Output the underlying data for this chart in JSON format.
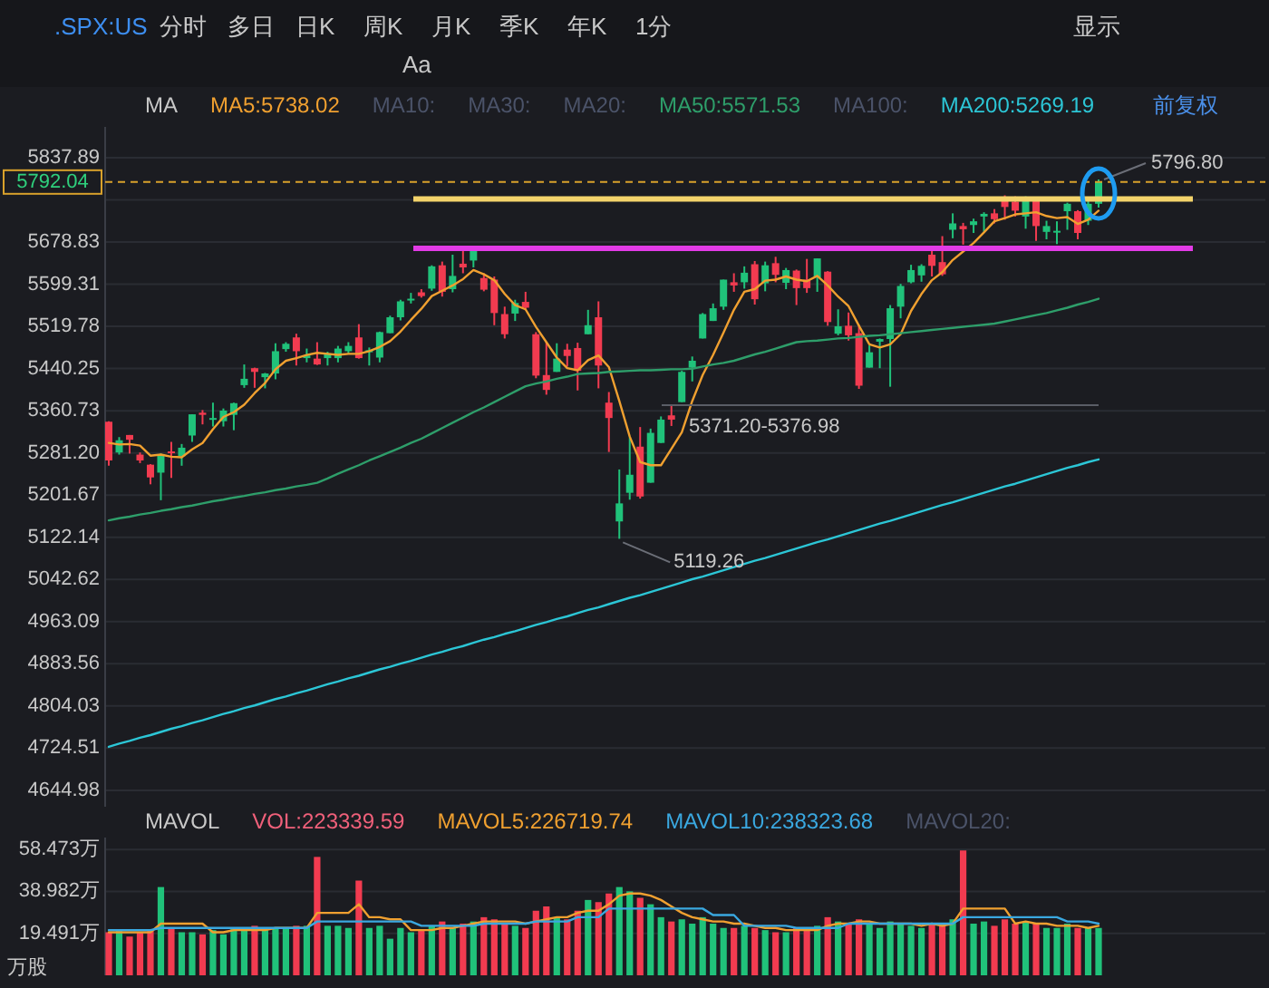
{
  "chart_data": [
    {
      "type": "other",
      "title": ".SPX:US",
      "annotations": [
        "分时",
        "多日",
        "日K",
        "周K",
        "月K",
        "季K",
        "年K",
        "1分",
        "显示",
        "Aa"
      ]
    },
    {
      "type": "candlestick",
      "categories": [
        null,
        null,
        null,
        null,
        null,
        null,
        null,
        null,
        null,
        null,
        null,
        null,
        null,
        null,
        null,
        null,
        null,
        null,
        null,
        null,
        null,
        null,
        null,
        null,
        null,
        null,
        null,
        null,
        null,
        null,
        null,
        null,
        null,
        null,
        null,
        null,
        null,
        null,
        null,
        null,
        null,
        null,
        null,
        null,
        null,
        null,
        null,
        null,
        null,
        null,
        null,
        null,
        null,
        null,
        null,
        null,
        null,
        null,
        null,
        null,
        null,
        null,
        null,
        null,
        null,
        null,
        null,
        null,
        null,
        null,
        null,
        null,
        null,
        null,
        null,
        null,
        null,
        null,
        null,
        null,
        null,
        null,
        null,
        null,
        null,
        null,
        null,
        null,
        null,
        null,
        null,
        null,
        null,
        null,
        null,
        null
      ],
      "ohlc": [
        [
          5340,
          5341,
          5257,
          5267
        ],
        [
          5282,
          5311,
          5278,
          5305
        ],
        [
          5315,
          5315,
          5280,
          5306
        ],
        [
          5278,
          5282,
          5262,
          5267
        ],
        [
          5259,
          5260,
          5222,
          5235
        ],
        [
          5244,
          5280,
          5192,
          5278
        ],
        [
          5284,
          5302,
          5234,
          5283
        ],
        [
          5275,
          5298,
          5257,
          5291
        ],
        [
          5314,
          5354,
          5302,
          5354
        ],
        [
          5357,
          5362,
          5335,
          5353
        ],
        [
          5344,
          5376,
          5331,
          5347
        ],
        [
          5341,
          5365,
          5331,
          5361
        ],
        [
          5353,
          5376,
          5324,
          5375
        ],
        [
          5409,
          5448,
          5404,
          5421
        ],
        [
          5441,
          5442,
          5404,
          5434
        ],
        [
          5424,
          5432,
          5403,
          5431
        ],
        [
          5431,
          5488,
          5420,
          5473
        ],
        [
          5477,
          5490,
          5472,
          5487
        ],
        [
          5499,
          5506,
          5446,
          5473
        ],
        [
          5460,
          5478,
          5452,
          5465
        ],
        [
          5459,
          5490,
          5447,
          5448
        ],
        [
          5460,
          5472,
          5446,
          5469
        ],
        [
          5460,
          5483,
          5452,
          5478
        ],
        [
          5473,
          5490,
          5469,
          5483
        ],
        [
          5499,
          5524,
          5459,
          5460
        ],
        [
          5471,
          5480,
          5446,
          5475
        ],
        [
          5461,
          5510,
          5452,
          5509
        ],
        [
          5507,
          5540,
          5507,
          5537
        ],
        [
          5537,
          5570,
          5531,
          5567
        ],
        [
          5570,
          5583,
          5563,
          5572
        ],
        [
          5584,
          5590,
          5574,
          5577
        ],
        [
          5591,
          5635,
          5587,
          5633
        ],
        [
          5635,
          5642,
          5576,
          5585
        ],
        [
          5590,
          5655,
          5584,
          5615
        ],
        [
          5638,
          5670,
          5620,
          5631
        ],
        [
          5644,
          5667,
          5631,
          5667
        ],
        [
          5611,
          5620,
          5586,
          5589
        ],
        [
          5608,
          5614,
          5522,
          5545
        ],
        [
          5543,
          5557,
          5497,
          5505
        ],
        [
          5544,
          5570,
          5530,
          5564
        ],
        [
          5566,
          5585,
          5550,
          5555
        ],
        [
          5505,
          5509,
          5422,
          5427
        ],
        [
          5428,
          5491,
          5391,
          5400
        ],
        [
          5434,
          5488,
          5434,
          5459
        ],
        [
          5476,
          5487,
          5444,
          5464
        ],
        [
          5479,
          5489,
          5399,
          5436
        ],
        [
          5505,
          5551,
          5505,
          5522
        ],
        [
          5537,
          5567,
          5403,
          5446
        ],
        [
          5376,
          5396,
          5283,
          5347
        ],
        [
          5152,
          5250,
          5119.26,
          5186
        ],
        [
          5206,
          5312,
          5193,
          5240
        ],
        [
          5293,
          5330,
          5195,
          5199
        ],
        [
          5225,
          5327,
          5225,
          5319
        ],
        [
          5300,
          5350,
          5300,
          5344
        ],
        [
          5352,
          5371,
          5332,
          5344
        ],
        [
          5377,
          5436,
          5377,
          5434
        ],
        [
          5442,
          5463,
          5416,
          5455
        ],
        [
          5497,
          5545,
          5497,
          5543
        ],
        [
          5530,
          5563,
          5530,
          5554
        ],
        [
          5557,
          5608,
          5551,
          5608
        ],
        [
          5603,
          5620,
          5585,
          5597
        ],
        [
          5603,
          5633,
          5591,
          5621
        ],
        [
          5637,
          5643,
          5561,
          5571
        ],
        [
          5601,
          5642,
          5586,
          5635
        ],
        [
          5639,
          5651,
          5603,
          5617
        ],
        [
          5602,
          5630,
          5590,
          5626
        ],
        [
          5625,
          5627,
          5560,
          5592
        ],
        [
          5608,
          5647,
          5583,
          5592
        ],
        [
          5612,
          5648,
          5585,
          5648
        ],
        [
          5623,
          5624,
          5521,
          5528
        ],
        [
          5506,
          5552,
          5503,
          5520
        ],
        [
          5521,
          5546,
          5493,
          5503
        ],
        [
          5507,
          5523,
          5402,
          5408
        ],
        [
          5442,
          5484,
          5442,
          5471
        ],
        [
          5491,
          5497,
          5441,
          5496
        ],
        [
          5496,
          5560,
          5406,
          5554
        ],
        [
          5557,
          5600,
          5535,
          5596
        ],
        [
          5603,
          5636,
          5601,
          5626
        ],
        [
          5616,
          5637,
          5604,
          5634
        ],
        [
          5655,
          5670,
          5614,
          5634
        ],
        [
          5641,
          5690,
          5615,
          5618
        ],
        [
          5702,
          5733,
          5686,
          5714
        ],
        [
          5709,
          5715,
          5674,
          5703
        ],
        [
          5711,
          5723,
          5696,
          5718
        ],
        [
          5727,
          5735,
          5698,
          5732
        ],
        [
          5733,
          5741,
          5714,
          5722
        ],
        [
          5762,
          5767,
          5721,
          5745
        ],
        [
          5755,
          5765,
          5727,
          5738
        ],
        [
          5727,
          5765,
          5704,
          5762
        ],
        [
          5757,
          5757,
          5681,
          5709
        ],
        [
          5698,
          5719,
          5684,
          5709
        ],
        [
          5698,
          5718,
          5675,
          5700
        ],
        [
          5737,
          5753,
          5702,
          5751
        ],
        [
          5737,
          5739,
          5684,
          5696
        ],
        [
          5719,
          5757,
          5711,
          5751
        ],
        [
          5751,
          5796.8,
          5744,
          5792.04
        ]
      ],
      "colors": [
        "#f23b50",
        "#20c27a",
        "#f23b50",
        "#f23b50",
        "#f23b50",
        "#20c27a",
        "#f23b50",
        "#20c27a",
        "#20c27a",
        "#f23b50",
        "#20c27a",
        "#20c27a",
        "#20c27a",
        "#20c27a",
        "#f23b50",
        "#20c27a",
        "#20c27a",
        "#20c27a",
        "#f23b50",
        "#20c27a",
        "#f23b50",
        "#20c27a",
        "#20c27a",
        "#20c27a",
        "#f23b50",
        "#20c27a",
        "#20c27a",
        "#20c27a",
        "#20c27a",
        "#20c27a",
        "#f23b50",
        "#20c27a",
        "#f23b50",
        "#20c27a",
        "#f23b50",
        "#20c27a",
        "#f23b50",
        "#f23b50",
        "#f23b50",
        "#20c27a",
        "#f23b50",
        "#f23b50",
        "#f23b50",
        "#20c27a",
        "#f23b50",
        "#f23b50",
        "#20c27a",
        "#f23b50",
        "#f23b50",
        "#20c27a",
        "#20c27a",
        "#f23b50",
        "#20c27a",
        "#20c27a",
        "#f23b50",
        "#20c27a",
        "#20c27a",
        "#20c27a",
        "#20c27a",
        "#20c27a",
        "#f23b50",
        "#20c27a",
        "#f23b50",
        "#20c27a",
        "#f23b50",
        "#20c27a",
        "#f23b50",
        "#f23b50",
        "#20c27a",
        "#f23b50",
        "#20c27a",
        "#f23b50",
        "#f23b50",
        "#20c27a",
        "#20c27a",
        "#20c27a",
        "#20c27a",
        "#20c27a",
        "#20c27a",
        "#f23b50",
        "#f23b50",
        "#20c27a",
        "#f23b50",
        "#20c27a",
        "#20c27a",
        "#f23b50",
        "#f23b50",
        "#f23b50",
        "#20c27a",
        "#f23b50",
        "#20c27a",
        "#20c27a",
        "#20c27a",
        "#f23b50",
        "#20c27a",
        "#20c27a"
      ],
      "ylim": [
        4614,
        5896
      ],
      "yticks": [
        5837.89,
        {
          "value": 5758.36,
          "label": null
        },
        5678.83,
        5599.31,
        5519.78,
        5440.25,
        5360.73,
        {
          "value": 5281.2,
          "label": "5281.20"
        },
        5201.67,
        5122.14,
        5042.62,
        4963.09,
        4883.56,
        4804.03,
        4724.51,
        4644.98
      ],
      "grid": "y",
      "legend": "top left",
      "legend_title": "MA",
      "series": [
        {
          "name": "MA5:5738.02",
          "type": "line",
          "color": "#f0a030",
          "values": [
            5300,
            5297,
            5298,
            5295,
            5276,
            5278,
            5274,
            5273,
            5288,
            5300,
            5326,
            5349,
            5358,
            5372,
            5394,
            5413,
            5439,
            5455,
            5460,
            5466,
            5470,
            5468,
            5466,
            5468,
            5468,
            5473,
            5481,
            5492,
            5510,
            5532,
            5553,
            5577,
            5587,
            5597,
            5609,
            5626,
            5618,
            5607,
            5581,
            5560,
            5552,
            5519,
            5490,
            5461,
            5441,
            5437,
            5456,
            5465,
            5443,
            5379,
            5312,
            5264,
            5258,
            5258,
            5289,
            5320,
            5379,
            5428,
            5466,
            5508,
            5551,
            5585,
            5590,
            5606,
            5608,
            5614,
            5608,
            5605,
            5615,
            5597,
            5576,
            5558,
            5521,
            5486,
            5480,
            5486,
            5505,
            5549,
            5581,
            5607,
            5622,
            5645,
            5661,
            5677,
            5697,
            5718,
            5724,
            5731,
            5733,
            5735,
            5728,
            5724,
            5726,
            5713,
            5721,
            5738
          ]
        },
        {
          "name": "MA50:5571.53",
          "type": "line",
          "color": "#2e9e6a",
          "values": [
            5154,
            5158,
            5161,
            5165,
            5168,
            5172,
            5175,
            5179,
            5182,
            5186,
            5190,
            5193,
            5197,
            5200,
            5204,
            5207,
            5211,
            5214,
            5218,
            5221,
            5225,
            5233,
            5242,
            5250,
            5258,
            5267,
            5275,
            5283,
            5291,
            5300,
            5308,
            5318,
            5328,
            5338,
            5348,
            5358,
            5367,
            5377,
            5387,
            5397,
            5407,
            5412,
            5416,
            5421,
            5425,
            5430,
            5431,
            5432,
            5434,
            5435,
            5436,
            5437,
            5437,
            5438,
            5439,
            5439,
            5440,
            5444,
            5448,
            5451,
            5455,
            5461,
            5467,
            5472,
            5478,
            5484,
            5490,
            5492,
            5493,
            5495,
            5497,
            5498,
            5500,
            5502,
            5503,
            5505,
            5507,
            5509,
            5511,
            5513,
            5515,
            5517,
            5519,
            5521,
            5523,
            5525,
            5529,
            5533,
            5537,
            5541,
            5545,
            5550,
            5555,
            5561,
            5566,
            5572
          ]
        },
        {
          "name": "MA200:5269.19",
          "type": "line",
          "color": "#2cc6d6",
          "values": [
            4727,
            4733,
            4738,
            4744,
            4749,
            4755,
            4761,
            4766,
            4772,
            4777,
            4783,
            4789,
            4794,
            4800,
            4805,
            4811,
            4817,
            4822,
            4828,
            4833,
            4839,
            4845,
            4850,
            4856,
            4861,
            4867,
            4873,
            4878,
            4884,
            4889,
            4895,
            4901,
            4906,
            4912,
            4917,
            4923,
            4929,
            4934,
            4940,
            4945,
            4951,
            4957,
            4962,
            4968,
            4973,
            4979,
            4985,
            4990,
            4996,
            5002,
            5008,
            5013,
            5019,
            5025,
            5031,
            5037,
            5043,
            5048,
            5054,
            5060,
            5066,
            5072,
            5078,
            5083,
            5089,
            5095,
            5101,
            5107,
            5113,
            5118,
            5124,
            5130,
            5136,
            5142,
            5148,
            5153,
            5159,
            5165,
            5171,
            5177,
            5183,
            5188,
            5194,
            5200,
            5206,
            5212,
            5218,
            5223,
            5229,
            5235,
            5241,
            5247,
            5253,
            5258,
            5264,
            5269
          ]
        }
      ],
      "ref_lines": [
        {
          "axis": "y",
          "value": 5667,
          "color": "#e23be6"
        },
        {
          "axis": "y",
          "value": 5760,
          "color": "#f3d36b"
        },
        {
          "axis": "y",
          "value": 5371.2,
          "label": "5371.20-5376.98",
          "color": "#5a5d66"
        },
        {
          "axis": "y",
          "value": 5792.04,
          "label": "5792.04",
          "color": "#d9a12b",
          "line_style": "dashed"
        }
      ],
      "annotations": [
        "MA10:",
        "MA30:",
        "MA20:",
        "MA100:",
        "前复权",
        {
          "text": "5796.80",
          "y": 5796.8
        },
        "5119.26"
      ]
    },
    {
      "type": "bar",
      "categories": [
        null,
        null,
        null,
        null,
        null,
        null,
        null,
        null,
        null,
        null,
        null,
        null,
        null,
        null,
        null,
        null,
        null,
        null,
        null,
        null,
        null,
        null,
        null,
        null,
        null,
        null,
        null,
        null,
        null,
        null,
        null,
        null,
        null,
        null,
        null,
        null,
        null,
        null,
        null,
        null,
        null,
        null,
        null,
        null,
        null,
        null,
        null,
        null,
        null,
        null,
        null,
        null,
        null,
        null,
        null,
        null,
        null,
        null,
        null,
        null,
        null,
        null,
        null,
        null,
        null,
        null,
        null,
        null,
        null,
        null,
        null,
        null,
        null,
        null,
        null,
        null,
        null,
        null,
        null,
        null,
        null,
        null,
        null,
        null,
        null,
        null,
        null,
        null,
        null,
        null,
        null,
        null,
        null,
        null,
        null,
        null
      ],
      "ylim": [
        0,
        64
      ],
      "yticks": [
        {
          "value": 19.491,
          "label": "19.491万"
        },
        {
          "value": 38.982,
          "label": "38.982万"
        },
        {
          "value": 58.473,
          "label": "58.473万"
        }
      ],
      "ylabel": "万股",
      "grid": "y",
      "legend": "top left",
      "legend_title": "MAVOL",
      "series": [
        {
          "name": "VOL:223339.59",
          "color": "#f0607a",
          "values": [
            20,
            21,
            18,
            20,
            21,
            41,
            22,
            20,
            20,
            19,
            21,
            19,
            22,
            22,
            23,
            21,
            22,
            22,
            23,
            23,
            55,
            23,
            23,
            22,
            44,
            22,
            23,
            17,
            22,
            20,
            21,
            23,
            25,
            22,
            24,
            25,
            27,
            26,
            24,
            23,
            22,
            30,
            32,
            27,
            26,
            30,
            35,
            34,
            38,
            41,
            39,
            36,
            33,
            27,
            25,
            26,
            24,
            27,
            24,
            22,
            22,
            23,
            22,
            21,
            20,
            20,
            22,
            22,
            23,
            27,
            25,
            24,
            26,
            24,
            22,
            25,
            24,
            23,
            22,
            24,
            24,
            26,
            58,
            24,
            25,
            23,
            26,
            24,
            25,
            24,
            22,
            22,
            24,
            22,
            22,
            22
          ],
          "colors": [
            "#f23b50",
            "#20c27a",
            "#f23b50",
            "#f23b50",
            "#f23b50",
            "#20c27a",
            "#f23b50",
            "#20c27a",
            "#20c27a",
            "#f23b50",
            "#20c27a",
            "#20c27a",
            "#20c27a",
            "#20c27a",
            "#f23b50",
            "#20c27a",
            "#20c27a",
            "#20c27a",
            "#f23b50",
            "#20c27a",
            "#f23b50",
            "#20c27a",
            "#20c27a",
            "#20c27a",
            "#f23b50",
            "#20c27a",
            "#20c27a",
            "#20c27a",
            "#20c27a",
            "#20c27a",
            "#f23b50",
            "#20c27a",
            "#f23b50",
            "#20c27a",
            "#f23b50",
            "#20c27a",
            "#f23b50",
            "#f23b50",
            "#f23b50",
            "#20c27a",
            "#f23b50",
            "#f23b50",
            "#f23b50",
            "#20c27a",
            "#f23b50",
            "#f23b50",
            "#20c27a",
            "#f23b50",
            "#f23b50",
            "#20c27a",
            "#20c27a",
            "#f23b50",
            "#20c27a",
            "#20c27a",
            "#f23b50",
            "#20c27a",
            "#20c27a",
            "#20c27a",
            "#20c27a",
            "#20c27a",
            "#f23b50",
            "#20c27a",
            "#f23b50",
            "#20c27a",
            "#f23b50",
            "#20c27a",
            "#f23b50",
            "#f23b50",
            "#20c27a",
            "#f23b50",
            "#20c27a",
            "#f23b50",
            "#f23b50",
            "#20c27a",
            "#20c27a",
            "#20c27a",
            "#20c27a",
            "#20c27a",
            "#20c27a",
            "#f23b50",
            "#f23b50",
            "#20c27a",
            "#f23b50",
            "#20c27a",
            "#20c27a",
            "#f23b50",
            "#f23b50",
            "#f23b50",
            "#20c27a",
            "#f23b50",
            "#20c27a",
            "#20c27a",
            "#20c27a",
            "#f23b50",
            "#20c27a",
            "#20c27a"
          ]
        },
        {
          "name": "MAVOL5:226719.74",
          "type": "line",
          "color": "#f0a030",
          "values": [
            20,
            20,
            20,
            20,
            20,
            24,
            24,
            24,
            24,
            24,
            20,
            20,
            21,
            21,
            21,
            21,
            22,
            22,
            22,
            22,
            29,
            29,
            29,
            29,
            33,
            27,
            27,
            26,
            26,
            21,
            21,
            21,
            22,
            22,
            23,
            24,
            25,
            25,
            25,
            25,
            24,
            25,
            26,
            27,
            27,
            29,
            30,
            30,
            33,
            37,
            38,
            38,
            37,
            35,
            32,
            29,
            27,
            26,
            25,
            25,
            24,
            24,
            23,
            22,
            22,
            21,
            21,
            21,
            21,
            23,
            24,
            24,
            25,
            25,
            24,
            24,
            24,
            24,
            23,
            24,
            23,
            24,
            31,
            31,
            31,
            31,
            31,
            24,
            25,
            24,
            24,
            23,
            23,
            23,
            22,
            23
          ]
        },
        {
          "name": "MAVOL10:238323.68",
          "type": "line",
          "color": "#3aa8e0",
          "values": [
            21,
            21,
            21,
            21,
            21,
            22,
            22,
            22,
            22,
            22,
            22,
            22,
            22,
            22,
            22,
            22,
            22,
            22,
            22,
            22,
            25,
            25,
            25,
            25,
            25,
            25,
            25,
            25,
            25,
            25,
            23,
            23,
            23,
            23,
            23,
            23,
            24,
            24,
            24,
            24,
            24,
            25,
            25,
            25,
            25,
            27,
            27,
            27,
            31,
            31,
            31,
            31,
            31,
            31,
            31,
            31,
            31,
            31,
            28,
            28,
            28,
            23,
            23,
            23,
            23,
            23,
            22,
            22,
            22,
            22,
            22,
            24,
            24,
            24,
            24,
            24,
            24,
            24,
            24,
            24,
            24,
            24,
            27,
            27,
            27,
            27,
            27,
            27,
            27,
            27,
            27,
            27,
            25,
            25,
            25,
            24
          ]
        }
      ],
      "annotations": [
        "MAVOL20:"
      ]
    }
  ]
}
